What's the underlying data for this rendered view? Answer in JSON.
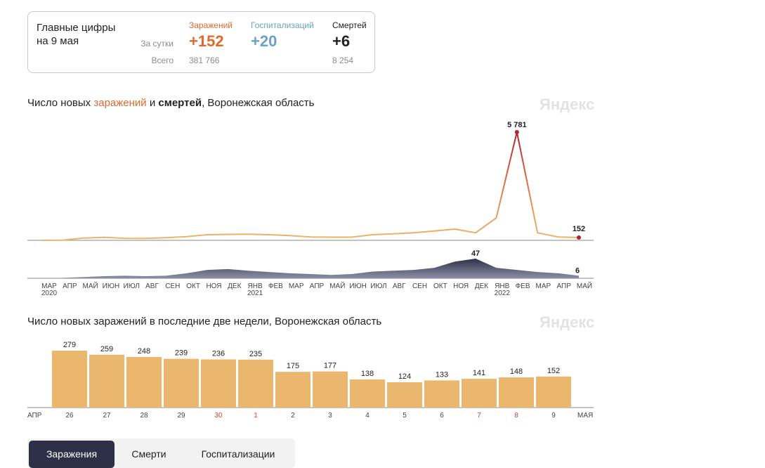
{
  "summary": {
    "title_line1": "Главные цифры",
    "title_line2": "на 9 мая",
    "label_day": "За сутки",
    "label_total": "Всего",
    "infections": {
      "label": "Заражений",
      "day": "+152",
      "total": "381 766",
      "color": "#e06a2c"
    },
    "hospitalizations": {
      "label": "Госпитализаций",
      "day": "+20",
      "total": "",
      "color": "#6aa1c7"
    },
    "deaths": {
      "label": "Смертей",
      "day": "+6",
      "total": "8 254",
      "color": "#222222"
    }
  },
  "chart1": {
    "title_pre": "Число новых ",
    "title_inf": "заражений",
    "title_mid": " и ",
    "title_dth": "смертей",
    "title_post": ", Воронежская область",
    "brand": "Яндекс",
    "peak_label": "5 781",
    "last_label": "152",
    "deaths_peak_label": "47",
    "deaths_last_label": "6",
    "month_labels": [
      "МАР",
      "АПР",
      "МАЙ",
      "ИЮН",
      "ИЮЛ",
      "АВГ",
      "СЕН",
      "ОКТ",
      "НОЯ",
      "ДЕК",
      "ЯНВ",
      "ФЕВ",
      "МАР",
      "АПР",
      "МАЙ",
      "ИЮН",
      "ИЮЛ",
      "АВГ",
      "СЕН",
      "ОКТ",
      "НОЯ",
      "ДЕК",
      "ЯНВ",
      "ФЕВ",
      "МАР",
      "АПР",
      "МАЙ"
    ],
    "year_labels": [
      "2020",
      "2021",
      "2022"
    ]
  },
  "chart2": {
    "title": "Число новых заражений в последние две недели, Воронежская область",
    "brand": "Яндекс",
    "left_month": "АПР",
    "right_month": "МАЯ"
  },
  "chart_data": [
    {
      "type": "line",
      "title": "Число новых заражений и смертей, Воронежская область",
      "series": [
        {
          "name": "Заражений",
          "x": [
            "2020-03",
            "2020-04",
            "2020-05",
            "2020-06",
            "2020-07",
            "2020-08",
            "2020-09",
            "2020-10",
            "2020-11",
            "2020-12",
            "2021-01",
            "2021-02",
            "2021-03",
            "2021-04",
            "2021-05",
            "2021-06",
            "2021-07",
            "2021-08",
            "2021-09",
            "2021-10",
            "2021-11",
            "2021-12",
            "2022-01",
            "2022-02",
            "2022-03",
            "2022-04",
            "2022-05"
          ],
          "values": [
            0,
            10,
            120,
            160,
            110,
            100,
            140,
            200,
            300,
            320,
            330,
            300,
            250,
            180,
            170,
            170,
            300,
            350,
            400,
            500,
            600,
            400,
            1200,
            5781,
            400,
            180,
            152
          ]
        },
        {
          "name": "Смертей",
          "x": [
            "2020-03",
            "2020-04",
            "2020-05",
            "2020-06",
            "2020-07",
            "2020-08",
            "2020-09",
            "2020-10",
            "2020-11",
            "2020-12",
            "2021-01",
            "2021-02",
            "2021-03",
            "2021-04",
            "2021-05",
            "2021-06",
            "2021-07",
            "2021-08",
            "2021-09",
            "2021-10",
            "2021-11",
            "2021-12",
            "2022-01",
            "2022-02",
            "2022-03",
            "2022-04",
            "2022-05"
          ],
          "values": [
            0,
            1,
            3,
            5,
            6,
            5,
            6,
            12,
            20,
            22,
            18,
            15,
            12,
            10,
            8,
            10,
            16,
            18,
            20,
            25,
            40,
            47,
            25,
            20,
            15,
            12,
            6
          ]
        }
      ]
    },
    {
      "type": "bar",
      "title": "Число новых заражений в последние две недели, Воронежская область",
      "categories": [
        "26",
        "27",
        "28",
        "29",
        "30",
        "1",
        "2",
        "3",
        "4",
        "5",
        "6",
        "7",
        "8",
        "9"
      ],
      "values": [
        279,
        259,
        248,
        239,
        236,
        235,
        175,
        177,
        138,
        124,
        133,
        141,
        148,
        152
      ],
      "weekend": [
        false,
        false,
        false,
        false,
        true,
        true,
        false,
        false,
        false,
        false,
        false,
        true,
        true,
        false
      ],
      "colors": {
        "bar": "#ebb66e",
        "weekend_label": "#d9452b"
      }
    }
  ],
  "tabs": [
    {
      "label": "Заражения",
      "active": true
    },
    {
      "label": "Смерти",
      "active": false
    },
    {
      "label": "Госпитализации",
      "active": false
    }
  ]
}
